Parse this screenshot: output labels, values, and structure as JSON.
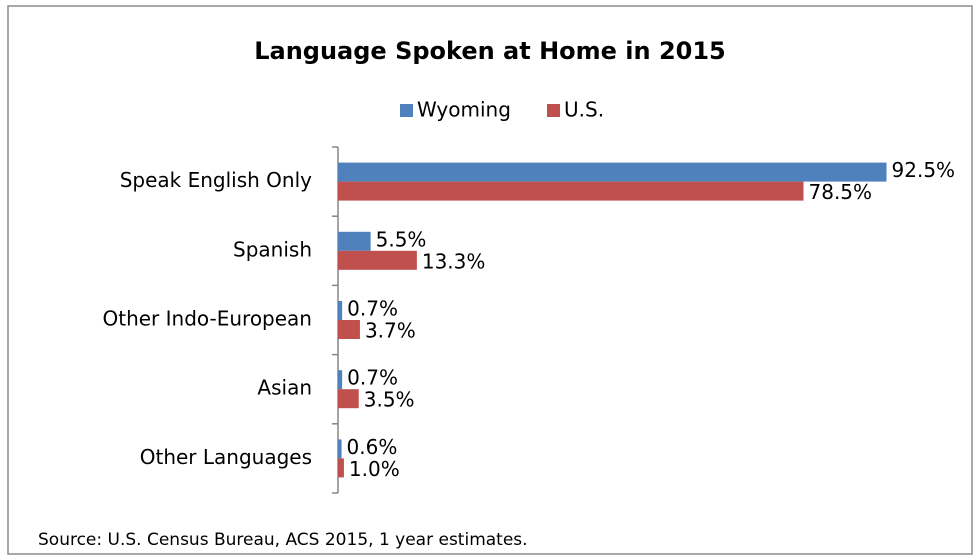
{
  "chart_data": {
    "type": "hbar",
    "title": "Language Spoken at Home in 2015",
    "source": "Source: U.S. Census Bureau, ACS 2015, 1 year estimates.",
    "categories": [
      "Speak English Only",
      "Spanish",
      "Other Indo-European",
      "Asian",
      "Other Languages"
    ],
    "series": [
      {
        "name": "Wyoming",
        "color": "#4f81bd",
        "values": [
          92.5,
          5.5,
          0.7,
          0.7,
          0.6
        ],
        "value_labels": [
          "92.5%",
          "5.5%",
          "0.7%",
          "0.7%",
          "0.6%"
        ]
      },
      {
        "name": "U.S.",
        "color": "#c0504d",
        "values": [
          78.5,
          13.3,
          3.7,
          3.5,
          1.0
        ],
        "value_labels": [
          "78.5%",
          "13.3%",
          "3.7%",
          "3.5%",
          "1.0%"
        ]
      }
    ],
    "xlim": [
      0,
      100
    ],
    "legend": "top"
  }
}
